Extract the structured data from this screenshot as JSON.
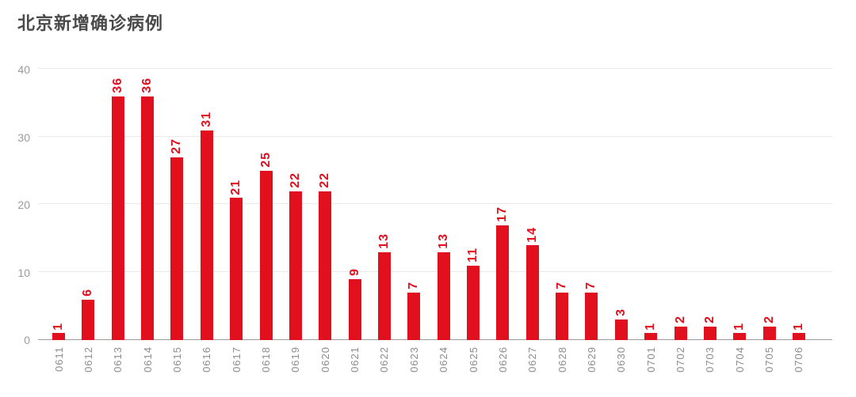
{
  "page": {
    "title": "北京新增确诊病例"
  },
  "colors": {
    "bar": "#e2101e",
    "value_label": "#e2101e",
    "title": "#4a4a4a",
    "axis_label": "#8c8c8c",
    "y_label": "#9b9b9b",
    "gridline": "#e9e9e9",
    "baseline": "#9a9a9a",
    "background": "#ffffff"
  },
  "chart_data": {
    "type": "bar",
    "title": "北京新增确诊病例",
    "categories": [
      "0611",
      "0612",
      "0613",
      "0614",
      "0615",
      "0616",
      "0617",
      "0618",
      "0619",
      "0620",
      "0621",
      "0622",
      "0623",
      "0624",
      "0625",
      "0626",
      "0627",
      "0628",
      "0629",
      "0630",
      "0701",
      "0702",
      "0703",
      "0704",
      "0705",
      "0706"
    ],
    "values": [
      1,
      6,
      36,
      36,
      27,
      31,
      21,
      25,
      22,
      22,
      9,
      13,
      7,
      13,
      11,
      17,
      14,
      7,
      7,
      3,
      1,
      2,
      2,
      1,
      2,
      1
    ],
    "xlabel": "",
    "ylabel": "",
    "ylim": [
      0,
      40
    ],
    "yticks": [
      0,
      10,
      20,
      30,
      40
    ],
    "grid": true,
    "legend": "none",
    "bar_labels_shown": true,
    "bar_labels_rotation": -90,
    "x_tick_rotation": -90
  }
}
